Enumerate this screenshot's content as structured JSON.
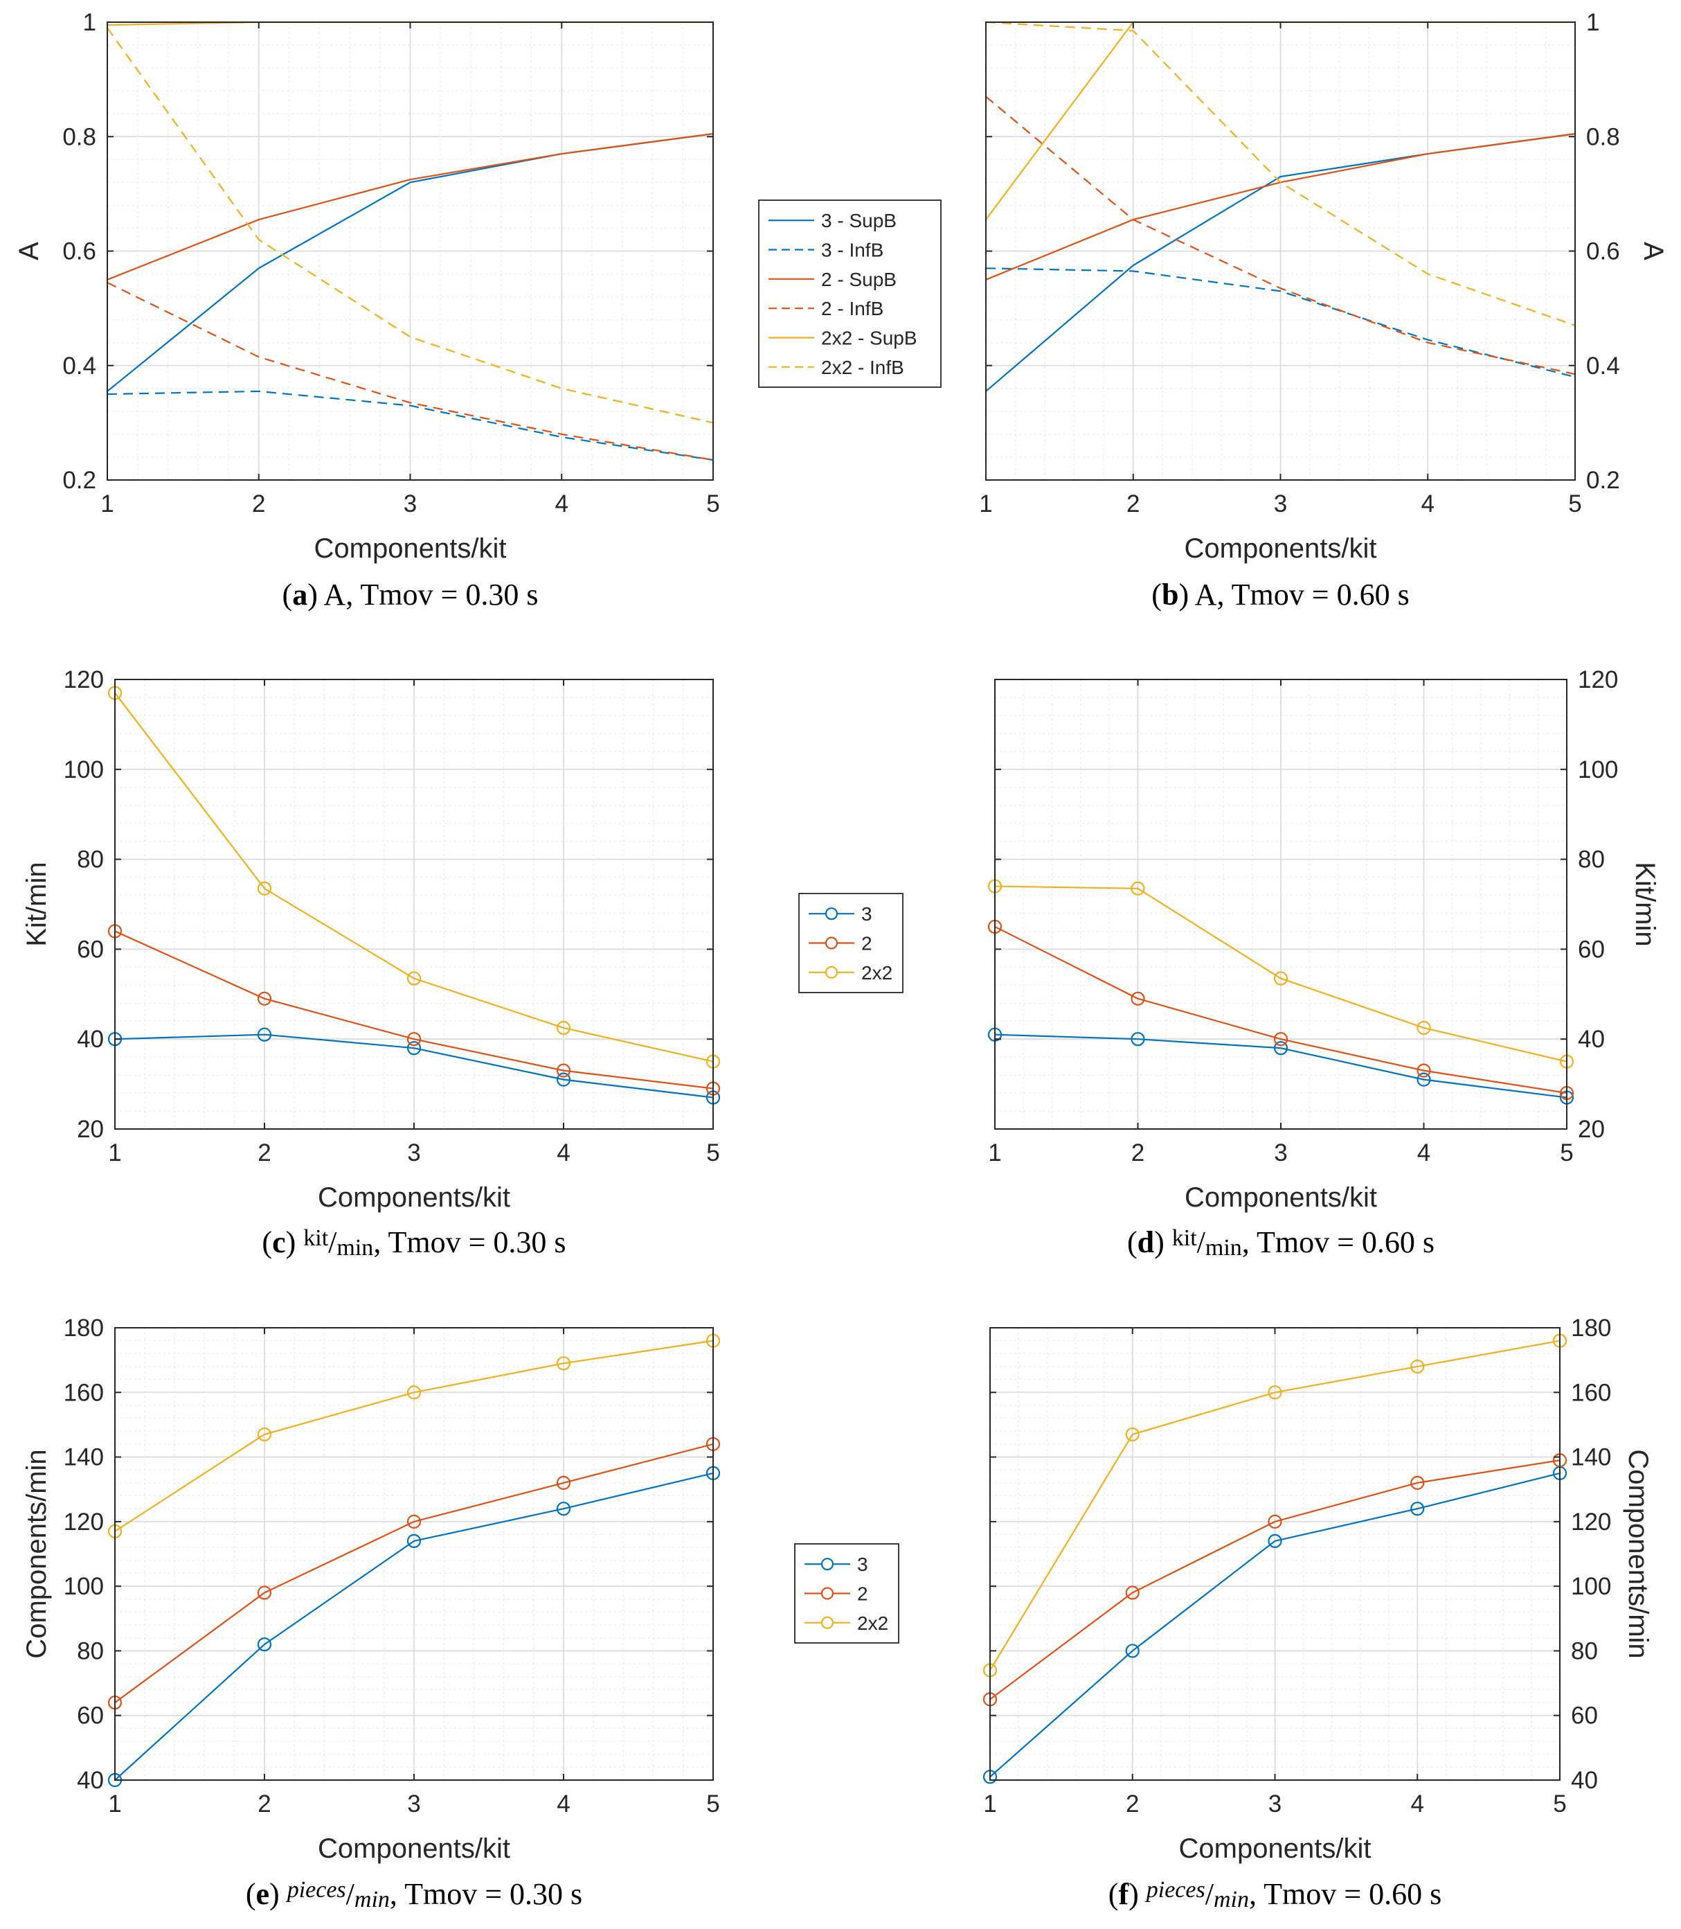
{
  "colors": {
    "3": "#0072BD",
    "2": "#D95319",
    "2x2": "#EDB120",
    "axis": "#262626",
    "grid_major": "#dcdcdc",
    "grid_minor": "#ededed"
  },
  "chart_data": [
    {
      "id": "a",
      "type": "line",
      "caption": {
        "label": "a",
        "pre": " A, Tmov = 0.30 s",
        "metric": "",
        "metric_style": "",
        "post": ""
      },
      "xlabel": "Components/kit",
      "ylabel": "A",
      "x": [
        1,
        2,
        3,
        4,
        5
      ],
      "xlim": [
        1,
        5
      ],
      "ylim": [
        0.2,
        1
      ],
      "yticks": [
        0.2,
        0.4,
        0.6,
        0.8,
        1
      ],
      "ytick_labels": [
        "0.2",
        "0.4",
        "0.6",
        "0.8",
        "1"
      ],
      "xticks": [
        1,
        2,
        3,
        4,
        5
      ],
      "ytick_side": "left",
      "markers": false,
      "grid": true,
      "series": [
        {
          "name": "3 - SupB",
          "color_key": "3",
          "dash": false,
          "values": [
            0.355,
            0.57,
            0.72,
            0.77,
            0.805
          ]
        },
        {
          "name": "3 - InfB",
          "color_key": "3",
          "dash": true,
          "values": [
            0.35,
            0.355,
            0.33,
            0.275,
            0.235
          ]
        },
        {
          "name": "2 - SupB",
          "color_key": "2",
          "dash": false,
          "values": [
            0.55,
            0.655,
            0.725,
            0.77,
            0.805
          ]
        },
        {
          "name": "2 - InfB",
          "color_key": "2",
          "dash": true,
          "values": [
            0.545,
            0.415,
            0.335,
            0.28,
            0.235
          ]
        },
        {
          "name": "2x2 - SupB",
          "color_key": "2x2",
          "dash": false,
          "values": [
            0.995,
            1.0,
            1.0,
            1.0,
            1.0
          ]
        },
        {
          "name": "2x2 - InfB",
          "color_key": "2x2",
          "dash": true,
          "values": [
            0.99,
            0.62,
            0.45,
            0.36,
            0.3
          ]
        }
      ]
    },
    {
      "id": "b",
      "type": "line",
      "caption": {
        "label": "b",
        "pre": " A, Tmov = 0.60 s",
        "metric": "",
        "metric_style": "",
        "post": ""
      },
      "xlabel": "Components/kit",
      "ylabel": "A",
      "x": [
        1,
        2,
        3,
        4,
        5
      ],
      "xlim": [
        1,
        5
      ],
      "ylim": [
        0.2,
        1
      ],
      "yticks": [
        0.2,
        0.4,
        0.6,
        0.8,
        1
      ],
      "ytick_labels": [
        "0.2",
        "0.4",
        "0.6",
        "0.8",
        "1"
      ],
      "xticks": [
        1,
        2,
        3,
        4,
        5
      ],
      "ytick_side": "right",
      "markers": false,
      "grid": true,
      "series": [
        {
          "name": "3 - SupB",
          "color_key": "3",
          "dash": false,
          "values": [
            0.355,
            0.575,
            0.73,
            0.77,
            0.805
          ]
        },
        {
          "name": "3 - InfB",
          "color_key": "3",
          "dash": true,
          "values": [
            0.57,
            0.565,
            0.53,
            0.445,
            0.38
          ]
        },
        {
          "name": "2 - SupB",
          "color_key": "2",
          "dash": false,
          "values": [
            0.55,
            0.655,
            0.72,
            0.77,
            0.805
          ]
        },
        {
          "name": "2 - InfB",
          "color_key": "2",
          "dash": true,
          "values": [
            0.87,
            0.655,
            0.535,
            0.44,
            0.385
          ]
        },
        {
          "name": "2x2 - SupB",
          "color_key": "2x2",
          "dash": false,
          "values": [
            0.655,
            1.0,
            1.0,
            1.0,
            1.0
          ]
        },
        {
          "name": "2x2 - InfB",
          "color_key": "2x2",
          "dash": true,
          "values": [
            1.0,
            0.985,
            0.72,
            0.56,
            0.47
          ]
        }
      ]
    },
    {
      "id": "c",
      "type": "line",
      "caption": {
        "label": "c",
        "pre": " ",
        "metric": "kit/min",
        "metric_style": "upright",
        "post": ", Tmov = 0.30 s"
      },
      "xlabel": "Components/kit",
      "ylabel": "Kit/min",
      "x": [
        1,
        2,
        3,
        4,
        5
      ],
      "xlim": [
        1,
        5
      ],
      "ylim": [
        20,
        120
      ],
      "yticks": [
        20,
        40,
        60,
        80,
        100,
        120
      ],
      "ytick_labels": [
        "20",
        "40",
        "60",
        "80",
        "100",
        "120"
      ],
      "xticks": [
        1,
        2,
        3,
        4,
        5
      ],
      "ytick_side": "left",
      "markers": true,
      "grid": true,
      "series": [
        {
          "name": "3",
          "color_key": "3",
          "dash": false,
          "values": [
            40,
            41,
            38,
            31,
            27
          ]
        },
        {
          "name": "2",
          "color_key": "2",
          "dash": false,
          "values": [
            64,
            49,
            40,
            33,
            29
          ]
        },
        {
          "name": "2x2",
          "color_key": "2x2",
          "dash": false,
          "values": [
            117,
            73.5,
            53.5,
            42.5,
            35
          ]
        }
      ]
    },
    {
      "id": "d",
      "type": "line",
      "caption": {
        "label": "d",
        "pre": " ",
        "metric": "kit/min",
        "metric_style": "upright",
        "post": ", Tmov = 0.60 s"
      },
      "xlabel": "Components/kit",
      "ylabel": "Kit/min",
      "x": [
        1,
        2,
        3,
        4,
        5
      ],
      "xlim": [
        1,
        5
      ],
      "ylim": [
        20,
        120
      ],
      "yticks": [
        20,
        40,
        60,
        80,
        100,
        120
      ],
      "ytick_labels": [
        "20",
        "40",
        "60",
        "80",
        "100",
        "120"
      ],
      "xticks": [
        1,
        2,
        3,
        4,
        5
      ],
      "ytick_side": "right",
      "markers": true,
      "grid": true,
      "series": [
        {
          "name": "3",
          "color_key": "3",
          "dash": false,
          "values": [
            41,
            40,
            38,
            31,
            27
          ]
        },
        {
          "name": "2",
          "color_key": "2",
          "dash": false,
          "values": [
            65,
            49,
            40,
            33,
            28
          ]
        },
        {
          "name": "2x2",
          "color_key": "2x2",
          "dash": false,
          "values": [
            74,
            73.5,
            53.5,
            42.5,
            35
          ]
        }
      ]
    },
    {
      "id": "e",
      "type": "line",
      "caption": {
        "label": "e",
        "pre": " ",
        "metric": "pieces/min",
        "metric_style": "italic",
        "post": ", Tmov = 0.30 s"
      },
      "xlabel": "Components/kit",
      "ylabel": "Components/min",
      "x": [
        1,
        2,
        3,
        4,
        5
      ],
      "xlim": [
        1,
        5
      ],
      "ylim": [
        40,
        180
      ],
      "yticks": [
        40,
        60,
        80,
        100,
        120,
        140,
        160,
        180
      ],
      "ytick_labels": [
        "40",
        "60",
        "80",
        "100",
        "120",
        "140",
        "160",
        "180"
      ],
      "xticks": [
        1,
        2,
        3,
        4,
        5
      ],
      "ytick_side": "left",
      "markers": true,
      "grid": true,
      "series": [
        {
          "name": "3",
          "color_key": "3",
          "dash": false,
          "values": [
            40,
            82,
            114,
            124,
            135
          ]
        },
        {
          "name": "2",
          "color_key": "2",
          "dash": false,
          "values": [
            64,
            98,
            120,
            132,
            144
          ]
        },
        {
          "name": "2x2",
          "color_key": "2x2",
          "dash": false,
          "values": [
            117,
            147,
            160,
            169,
            176
          ]
        }
      ]
    },
    {
      "id": "f",
      "type": "line",
      "caption": {
        "label": "f",
        "pre": " ",
        "metric": "pieces/min",
        "metric_style": "italic",
        "post": ", Tmov = 0.60 s"
      },
      "xlabel": "Components/kit",
      "ylabel": "Components/min",
      "x": [
        1,
        2,
        3,
        4,
        5
      ],
      "xlim": [
        1,
        5
      ],
      "ylim": [
        40,
        180
      ],
      "yticks": [
        40,
        60,
        80,
        100,
        120,
        140,
        160,
        180
      ],
      "ytick_labels": [
        "40",
        "60",
        "80",
        "100",
        "120",
        "140",
        "160",
        "180"
      ],
      "xticks": [
        1,
        2,
        3,
        4,
        5
      ],
      "ytick_side": "right",
      "markers": true,
      "grid": true,
      "series": [
        {
          "name": "3",
          "color_key": "3",
          "dash": false,
          "values": [
            41,
            80,
            114,
            124,
            135
          ]
        },
        {
          "name": "2",
          "color_key": "2",
          "dash": false,
          "values": [
            65,
            98,
            120,
            132,
            139
          ]
        },
        {
          "name": "2x2",
          "color_key": "2x2",
          "dash": false,
          "values": [
            74,
            147,
            160,
            168,
            176
          ]
        }
      ]
    }
  ],
  "legends": [
    {
      "id": "legend-row-1",
      "for_chart": "a",
      "entries": [
        {
          "label": "3 - SupB",
          "color_key": "3",
          "dash": false,
          "marker": false
        },
        {
          "label": "3 - InfB",
          "color_key": "3",
          "dash": true,
          "marker": false
        },
        {
          "label": "2 - SupB",
          "color_key": "2",
          "dash": false,
          "marker": false
        },
        {
          "label": "2 - InfB",
          "color_key": "2",
          "dash": true,
          "marker": false
        },
        {
          "label": "2x2 - SupB",
          "color_key": "2x2",
          "dash": false,
          "marker": false
        },
        {
          "label": "2x2 - InfB",
          "color_key": "2x2",
          "dash": true,
          "marker": false
        }
      ]
    },
    {
      "id": "legend-row-2",
      "for_chart": "c",
      "entries": [
        {
          "label": "3",
          "color_key": "3",
          "dash": false,
          "marker": true
        },
        {
          "label": "2",
          "color_key": "2",
          "dash": false,
          "marker": true
        },
        {
          "label": "2x2",
          "color_key": "2x2",
          "dash": false,
          "marker": true
        }
      ]
    },
    {
      "id": "legend-row-3",
      "for_chart": "e",
      "entries": [
        {
          "label": "3",
          "color_key": "3",
          "dash": false,
          "marker": true
        },
        {
          "label": "2",
          "color_key": "2",
          "dash": false,
          "marker": true
        },
        {
          "label": "2x2",
          "color_key": "2x2",
          "dash": false,
          "marker": true
        }
      ]
    }
  ]
}
